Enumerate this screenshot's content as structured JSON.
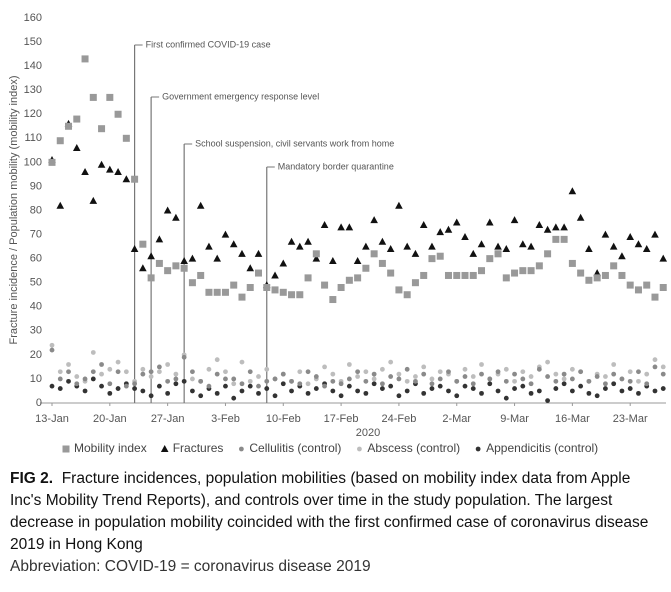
{
  "figure_label": "FIG 2.",
  "caption": "Fracture incidences, population mobilities (based on mobility index data from Apple Inc's Mobility Trend Reports), and controls over time in the study population. The largest decrease in population mobility coincided with the first confirmed case of coronavirus disease 2019 in Hong Kong",
  "abbreviation": "Abbreviation: COVID-19 = coronavirus disease 2019",
  "chart_data": {
    "type": "scatter",
    "y_label": "Fracture incidence / Population mobility (mobility index)",
    "x_label": "2020",
    "categories": [
      "13-Jan",
      null,
      null,
      null,
      null,
      null,
      null,
      "20-Jan",
      null,
      null,
      null,
      null,
      null,
      null,
      "27-Jan",
      null,
      null,
      null,
      null,
      null,
      null,
      "3-Feb",
      null,
      null,
      null,
      null,
      null,
      null,
      "10-Feb",
      null,
      null,
      null,
      null,
      null,
      null,
      "17-Feb",
      null,
      null,
      null,
      null,
      null,
      null,
      "24-Feb",
      null,
      null,
      null,
      null,
      null,
      null,
      "2-Mar",
      null,
      null,
      null,
      null,
      null,
      null,
      "9-Mar",
      null,
      null,
      null,
      null,
      null,
      null,
      "16-Mar",
      null,
      null,
      null,
      null,
      null,
      null,
      "23-Mar",
      null,
      null,
      null,
      null
    ],
    "ylim": [
      0,
      160
    ],
    "yticks": [
      0,
      10,
      20,
      30,
      40,
      50,
      60,
      70,
      80,
      90,
      100,
      110,
      120,
      130,
      140,
      150,
      160
    ],
    "grid": false,
    "annotations": [
      {
        "label": "First confirmed COVID-19 case",
        "x": 10
      },
      {
        "label": "Government emergency response level",
        "x": 12
      },
      {
        "label": "School suspension, civil servants work from home",
        "x": 16
      },
      {
        "label": "Mandatory border quarantine",
        "x": 26
      }
    ],
    "series": [
      {
        "name": "Mobility index",
        "color": "#999999",
        "marker": "square",
        "values": [
          100,
          109,
          115,
          118,
          143,
          127,
          114,
          127,
          120,
          110,
          93,
          66,
          52,
          58,
          55,
          57,
          56,
          50,
          53,
          46,
          46,
          46,
          49,
          44,
          48,
          54,
          48,
          47,
          46,
          45,
          45,
          52,
          62,
          49,
          43,
          48,
          51,
          52,
          56,
          62,
          58,
          54,
          47,
          45,
          50,
          53,
          60,
          61,
          53,
          53,
          53,
          53,
          55,
          60,
          62,
          52,
          54,
          55,
          55,
          57,
          62,
          68,
          68,
          58,
          54,
          51,
          52,
          53,
          57,
          53,
          49,
          47,
          49,
          44,
          48
        ]
      },
      {
        "name": "Fractures",
        "color": "#111111",
        "marker": "triangle",
        "values": [
          101,
          82,
          116,
          106,
          96,
          84,
          99,
          97,
          96,
          93,
          64,
          56,
          61,
          68,
          80,
          77,
          59,
          60,
          82,
          65,
          60,
          70,
          66,
          62,
          56,
          62,
          49,
          53,
          58,
          67,
          65,
          67,
          60,
          74,
          59,
          73,
          73,
          59,
          65,
          76,
          67,
          64,
          82,
          65,
          62,
          74,
          65,
          71,
          72,
          75,
          69,
          62,
          66,
          75,
          65,
          64,
          76,
          66,
          65,
          74,
          72,
          73,
          73,
          88,
          77,
          64,
          54,
          70,
          65,
          61,
          69,
          66,
          64,
          70,
          60
        ]
      },
      {
        "name": "Cellulitis (control)",
        "color": "#8a8a8a",
        "marker": "circle",
        "values": [
          22,
          10,
          13,
          8,
          10,
          13,
          16,
          8,
          13,
          7,
          8,
          12,
          13,
          15,
          9,
          10,
          19,
          13,
          9,
          7,
          12,
          10,
          10,
          8,
          13,
          7,
          9,
          10,
          12,
          9,
          8,
          13,
          11,
          7,
          9,
          8,
          10,
          13,
          9,
          12,
          8,
          11,
          10,
          14,
          9,
          12,
          8,
          10,
          13,
          9,
          11,
          8,
          12,
          10,
          13,
          9,
          12,
          10,
          8,
          14,
          11,
          9,
          12,
          10,
          13,
          9,
          11,
          8,
          12,
          10,
          9,
          13,
          8,
          15,
          12
        ]
      },
      {
        "name": "Abscess (control)",
        "color": "#bdbdbd",
        "marker": "circle",
        "values": [
          24,
          13,
          16,
          11,
          9,
          21,
          12,
          14,
          17,
          13,
          9,
          14,
          11,
          13,
          16,
          12,
          20,
          10,
          9,
          14,
          18,
          13,
          8,
          17,
          9,
          11,
          14,
          10,
          12,
          9,
          13,
          8,
          10,
          15,
          12,
          9,
          16,
          11,
          13,
          10,
          14,
          17,
          12,
          9,
          11,
          15,
          10,
          13,
          12,
          9,
          14,
          11,
          16,
          10,
          12,
          14,
          9,
          13,
          11,
          15,
          17,
          12,
          10,
          14,
          13,
          9,
          12,
          11,
          16,
          10,
          13,
          9,
          12,
          18,
          15
        ]
      },
      {
        "name": "Appendicitis (control)",
        "color": "#333333",
        "marker": "circle",
        "values": [
          7,
          6,
          9,
          7,
          5,
          10,
          7,
          4,
          6,
          8,
          6,
          5,
          3,
          7,
          4,
          8,
          9,
          5,
          3,
          6,
          4,
          7,
          2,
          5,
          7,
          4,
          6,
          3,
          8,
          5,
          7,
          4,
          6,
          8,
          5,
          3,
          7,
          5,
          4,
          8,
          6,
          7,
          3,
          5,
          8,
          4,
          6,
          7,
          5,
          3,
          7,
          6,
          4,
          8,
          5,
          2,
          6,
          7,
          4,
          5,
          1,
          6,
          8,
          5,
          7,
          4,
          3,
          6,
          8,
          5,
          6,
          4,
          7,
          5,
          6
        ]
      }
    ],
    "legend": "bottom"
  }
}
